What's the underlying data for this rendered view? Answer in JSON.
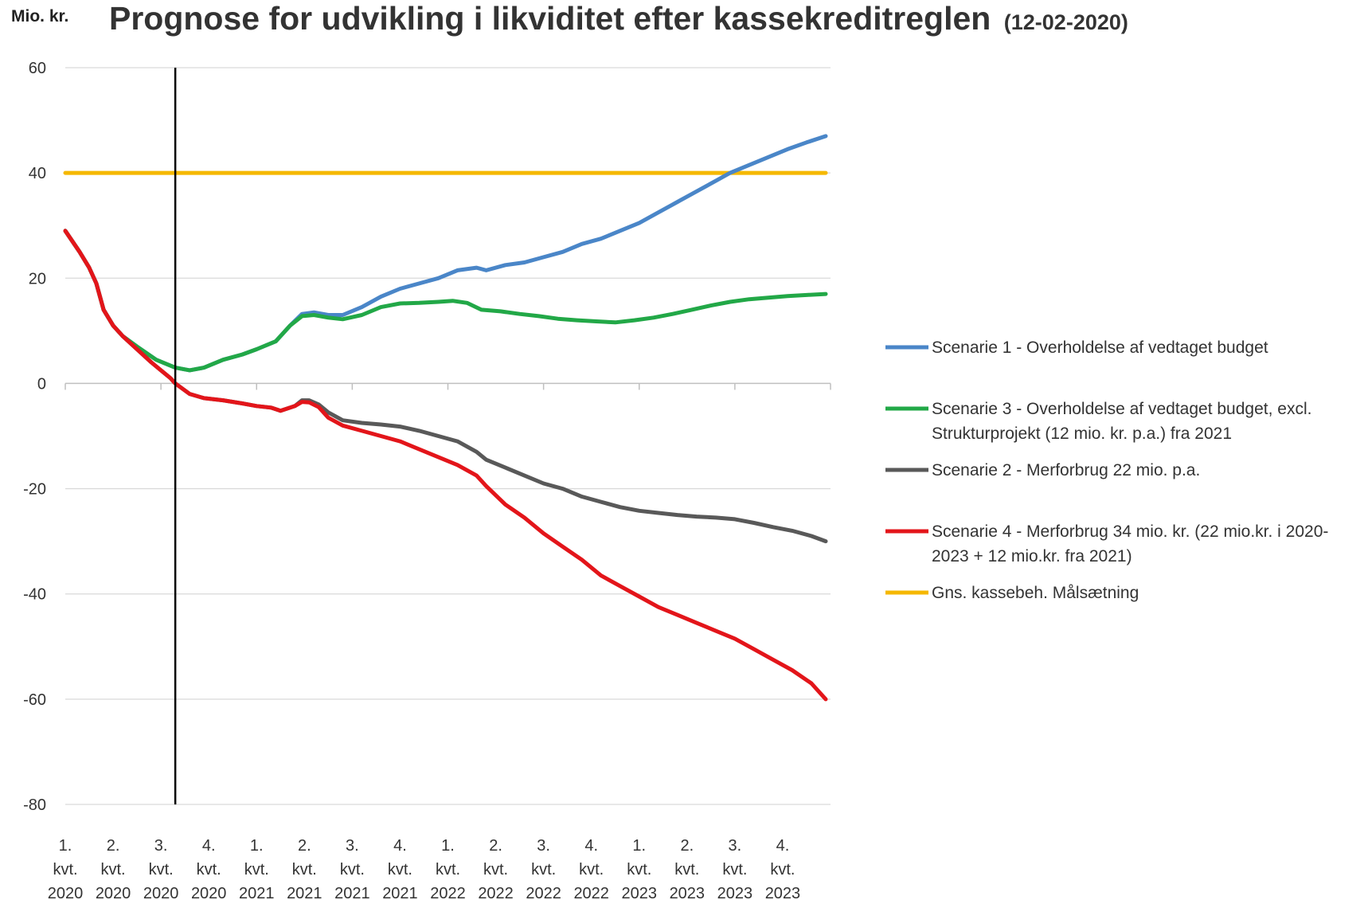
{
  "chart_data": {
    "type": "line",
    "unit_label": "Mio. kr.",
    "title": "Prognose for udvikling i likviditet efter kassekreditreglen",
    "subtitle": "(12-02-2020)",
    "ylim": [
      -80,
      60
    ],
    "yticks": [
      "60",
      "40",
      "20",
      "0",
      "-20",
      "-40",
      "-60",
      "-80"
    ],
    "ytick_values": [
      60,
      40,
      20,
      0,
      -20,
      -40,
      -60,
      -80
    ],
    "x_range": [
      0,
      16
    ],
    "categories": [
      [
        "1.",
        "kvt.",
        "2020"
      ],
      [
        "2.",
        "kvt.",
        "2020"
      ],
      [
        "3.",
        "kvt.",
        "2020"
      ],
      [
        "4.",
        "kvt.",
        "2020"
      ],
      [
        "1.",
        "kvt.",
        "2021"
      ],
      [
        "2.",
        "kvt.",
        "2021"
      ],
      [
        "3.",
        "kvt.",
        "2021"
      ],
      [
        "4.",
        "kvt.",
        "2021"
      ],
      [
        "1.",
        "kvt.",
        "2022"
      ],
      [
        "2.",
        "kvt.",
        "2022"
      ],
      [
        "3.",
        "kvt.",
        "2022"
      ],
      [
        "4.",
        "kvt.",
        "2022"
      ],
      [
        "1.",
        "kvt.",
        "2023"
      ],
      [
        "2.",
        "kvt.",
        "2023"
      ],
      [
        "3.",
        "kvt.",
        "2023"
      ],
      [
        "4.",
        "kvt.",
        "2023"
      ]
    ],
    "vertical_marker_x": 2.3,
    "grid": true,
    "legend_position": "right",
    "series": [
      {
        "name": "Scenarie 1 - Overholdelse af vedtaget budget",
        "color": "#4a86c8",
        "points": [
          [
            0,
            29
          ],
          [
            0.3,
            25
          ],
          [
            0.5,
            22
          ],
          [
            0.65,
            19
          ],
          [
            0.8,
            14
          ],
          [
            1.0,
            11
          ],
          [
            1.2,
            9
          ],
          [
            1.5,
            7
          ],
          [
            1.9,
            4.5
          ],
          [
            2.3,
            3
          ],
          [
            2.6,
            2.5
          ],
          [
            2.9,
            3
          ],
          [
            3.3,
            4.5
          ],
          [
            3.7,
            5.5
          ],
          [
            4.0,
            6.5
          ],
          [
            4.4,
            8
          ],
          [
            4.7,
            11
          ],
          [
            4.95,
            13.2
          ],
          [
            5.2,
            13.5
          ],
          [
            5.5,
            13
          ],
          [
            5.8,
            13
          ],
          [
            6.2,
            14.5
          ],
          [
            6.6,
            16.5
          ],
          [
            7.0,
            18
          ],
          [
            7.4,
            19
          ],
          [
            7.8,
            20
          ],
          [
            8.2,
            21.5
          ],
          [
            8.6,
            22
          ],
          [
            8.8,
            21.5
          ],
          [
            9.2,
            22.5
          ],
          [
            9.6,
            23
          ],
          [
            10.0,
            24
          ],
          [
            10.4,
            25
          ],
          [
            10.8,
            26.5
          ],
          [
            11.2,
            27.5
          ],
          [
            11.6,
            29
          ],
          [
            12.0,
            30.5
          ],
          [
            12.4,
            32.5
          ],
          [
            12.8,
            34.5
          ],
          [
            13.2,
            36.5
          ],
          [
            13.6,
            38.5
          ],
          [
            13.9,
            40
          ],
          [
            14.3,
            41.5
          ],
          [
            14.7,
            43
          ],
          [
            15.1,
            44.5
          ],
          [
            15.5,
            45.8
          ],
          [
            15.9,
            47
          ]
        ]
      },
      {
        "name": "Scenarie 3 - Overholdelse af vedtaget budget, excl. Strukturprojekt (12 mio. kr. p.a.) fra 2021",
        "color": "#22a847",
        "points": [
          [
            0,
            29
          ],
          [
            0.3,
            25
          ],
          [
            0.5,
            22
          ],
          [
            0.65,
            19
          ],
          [
            0.8,
            14
          ],
          [
            1.0,
            11
          ],
          [
            1.2,
            9
          ],
          [
            1.5,
            7
          ],
          [
            1.9,
            4.5
          ],
          [
            2.3,
            3
          ],
          [
            2.6,
            2.5
          ],
          [
            2.9,
            3
          ],
          [
            3.3,
            4.5
          ],
          [
            3.7,
            5.5
          ],
          [
            4.0,
            6.5
          ],
          [
            4.4,
            8
          ],
          [
            4.7,
            11
          ],
          [
            4.95,
            12.8
          ],
          [
            5.2,
            13
          ],
          [
            5.5,
            12.5
          ],
          [
            5.8,
            12.2
          ],
          [
            6.2,
            13
          ],
          [
            6.6,
            14.5
          ],
          [
            7.0,
            15.2
          ],
          [
            7.4,
            15.3
          ],
          [
            7.8,
            15.5
          ],
          [
            8.1,
            15.7
          ],
          [
            8.4,
            15.3
          ],
          [
            8.7,
            14
          ],
          [
            9.1,
            13.7
          ],
          [
            9.5,
            13.2
          ],
          [
            9.9,
            12.8
          ],
          [
            10.3,
            12.3
          ],
          [
            10.7,
            12
          ],
          [
            11.1,
            11.8
          ],
          [
            11.5,
            11.6
          ],
          [
            11.9,
            12
          ],
          [
            12.3,
            12.5
          ],
          [
            12.7,
            13.2
          ],
          [
            13.1,
            14
          ],
          [
            13.5,
            14.8
          ],
          [
            13.9,
            15.5
          ],
          [
            14.3,
            16
          ],
          [
            14.7,
            16.3
          ],
          [
            15.1,
            16.6
          ],
          [
            15.5,
            16.8
          ],
          [
            15.9,
            17
          ]
        ]
      },
      {
        "name": "Scenarie 2 - Merforbrug 22 mio. p.a.",
        "color": "#595959",
        "points": [
          [
            0,
            29
          ],
          [
            0.3,
            25
          ],
          [
            0.5,
            22
          ],
          [
            0.65,
            19
          ],
          [
            0.8,
            14
          ],
          [
            1.0,
            11
          ],
          [
            1.2,
            9
          ],
          [
            1.5,
            6.5
          ],
          [
            1.8,
            4
          ],
          [
            2.0,
            2.5
          ],
          [
            2.2,
            1
          ],
          [
            2.3,
            0
          ],
          [
            2.6,
            -2
          ],
          [
            2.9,
            -2.8
          ],
          [
            3.3,
            -3.2
          ],
          [
            3.7,
            -3.8
          ],
          [
            4.0,
            -4.3
          ],
          [
            4.3,
            -4.6
          ],
          [
            4.5,
            -5.2
          ],
          [
            4.8,
            -4.3
          ],
          [
            4.95,
            -3.2
          ],
          [
            5.1,
            -3.2
          ],
          [
            5.3,
            -4
          ],
          [
            5.5,
            -5.5
          ],
          [
            5.8,
            -7
          ],
          [
            6.2,
            -7.5
          ],
          [
            6.6,
            -7.8
          ],
          [
            7.0,
            -8.2
          ],
          [
            7.4,
            -9
          ],
          [
            7.8,
            -10
          ],
          [
            8.2,
            -11
          ],
          [
            8.6,
            -13
          ],
          [
            8.8,
            -14.5
          ],
          [
            9.2,
            -16
          ],
          [
            9.6,
            -17.5
          ],
          [
            10.0,
            -19
          ],
          [
            10.4,
            -20
          ],
          [
            10.8,
            -21.5
          ],
          [
            11.2,
            -22.5
          ],
          [
            11.6,
            -23.5
          ],
          [
            12.0,
            -24.2
          ],
          [
            12.4,
            -24.6
          ],
          [
            12.8,
            -25
          ],
          [
            13.2,
            -25.3
          ],
          [
            13.6,
            -25.5
          ],
          [
            14.0,
            -25.8
          ],
          [
            14.4,
            -26.5
          ],
          [
            14.8,
            -27.3
          ],
          [
            15.2,
            -28
          ],
          [
            15.6,
            -29
          ],
          [
            15.9,
            -30
          ]
        ]
      },
      {
        "name": "Scenarie 4 - Merforbrug 34 mio. kr. (22 mio.kr. i 2020-2023 + 12 mio.kr. fra 2021)",
        "color": "#e3151a",
        "points": [
          [
            0,
            29
          ],
          [
            0.3,
            25
          ],
          [
            0.5,
            22
          ],
          [
            0.65,
            19
          ],
          [
            0.8,
            14
          ],
          [
            1.0,
            11
          ],
          [
            1.2,
            9
          ],
          [
            1.5,
            6.5
          ],
          [
            1.8,
            4
          ],
          [
            2.0,
            2.5
          ],
          [
            2.2,
            1
          ],
          [
            2.3,
            0
          ],
          [
            2.6,
            -2
          ],
          [
            2.9,
            -2.8
          ],
          [
            3.3,
            -3.2
          ],
          [
            3.7,
            -3.8
          ],
          [
            4.0,
            -4.3
          ],
          [
            4.3,
            -4.6
          ],
          [
            4.5,
            -5.2
          ],
          [
            4.8,
            -4.3
          ],
          [
            4.95,
            -3.5
          ],
          [
            5.1,
            -3.6
          ],
          [
            5.3,
            -4.5
          ],
          [
            5.5,
            -6.5
          ],
          [
            5.8,
            -8
          ],
          [
            6.2,
            -9
          ],
          [
            6.6,
            -10
          ],
          [
            7.0,
            -11
          ],
          [
            7.4,
            -12.5
          ],
          [
            7.8,
            -14
          ],
          [
            8.2,
            -15.5
          ],
          [
            8.6,
            -17.5
          ],
          [
            8.8,
            -19.5
          ],
          [
            9.2,
            -23
          ],
          [
            9.6,
            -25.5
          ],
          [
            10.0,
            -28.5
          ],
          [
            10.4,
            -31
          ],
          [
            10.8,
            -33.5
          ],
          [
            11.2,
            -36.5
          ],
          [
            11.6,
            -38.5
          ],
          [
            12.0,
            -40.5
          ],
          [
            12.4,
            -42.5
          ],
          [
            12.8,
            -44
          ],
          [
            13.2,
            -45.5
          ],
          [
            13.6,
            -47
          ],
          [
            14.0,
            -48.5
          ],
          [
            14.4,
            -50.5
          ],
          [
            14.8,
            -52.5
          ],
          [
            15.2,
            -54.5
          ],
          [
            15.6,
            -57
          ],
          [
            15.9,
            -60
          ]
        ]
      },
      {
        "name": "Gns. kassebeh. Målsætning",
        "color": "#f5b800",
        "points": [
          [
            0,
            40
          ],
          [
            15.9,
            40
          ]
        ]
      }
    ]
  }
}
